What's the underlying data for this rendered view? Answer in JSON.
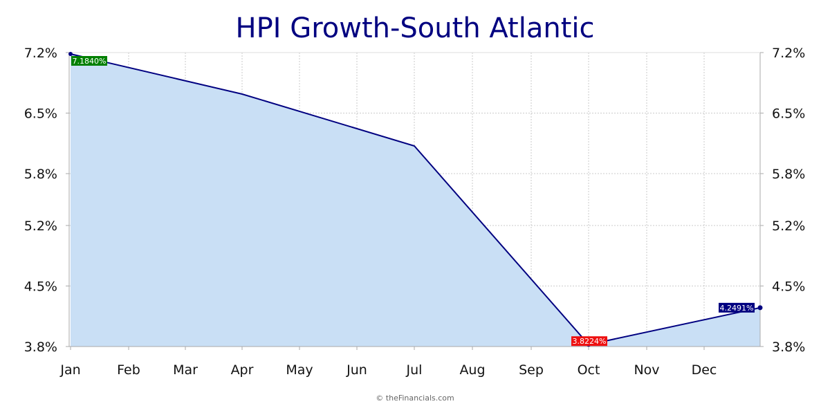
{
  "chart_data": {
    "type": "area",
    "title": "HPI Growth-South Atlantic",
    "xlabel": "",
    "ylabel": "",
    "categories": [
      "Jan",
      "Feb",
      "Mar",
      "Apr",
      "May",
      "Jun",
      "Jul",
      "Aug",
      "Sep",
      "Oct",
      "Nov",
      "Dec"
    ],
    "series": [
      {
        "points": [
          {
            "x": "Jan",
            "y": 7.184
          },
          {
            "x": "Apr",
            "y": 6.72
          },
          {
            "x": "Jul",
            "y": 6.12
          },
          {
            "x": "Oct",
            "y": 3.8224
          },
          {
            "x": "Dec-end",
            "y": 4.2491
          }
        ]
      }
    ],
    "ylim": [
      3.8,
      7.2
    ],
    "yticks": [
      "3.8%",
      "4.5%",
      "5.2%",
      "5.8%",
      "6.5%",
      "7.2%"
    ],
    "ytick_values": [
      3.8,
      4.5,
      5.2,
      5.8,
      6.5,
      7.2
    ],
    "grid": true,
    "legend": "none",
    "annotations": [
      {
        "label": "7.1840%",
        "kind": "max",
        "color": "#008000"
      },
      {
        "label": "3.8224%",
        "kind": "min",
        "color": "#ee1111"
      },
      {
        "label": "4.2491%",
        "kind": "last",
        "color": "#000080"
      }
    ],
    "colors": {
      "line": "#000080",
      "fill": "#c9dff5",
      "grid": "#bbbbbb",
      "axis": "#aaaaaa"
    }
  },
  "credit": "© theFinancials.com"
}
